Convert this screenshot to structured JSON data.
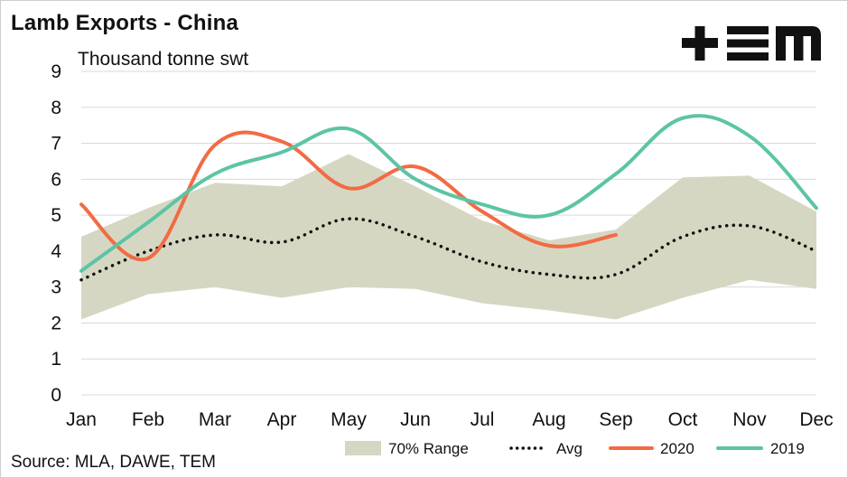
{
  "title": "Lamb Exports - China",
  "unit": "Thousand tonne swt",
  "source": "Source: MLA, DAWE, TEM",
  "logo_text": "TEM",
  "colors": {
    "range": "#d6d7c3",
    "avg": "#111111",
    "s2020": "#f26b43",
    "s2019": "#5cc4a5",
    "grid": "#d9d9d9"
  },
  "chart_data": {
    "type": "line",
    "title": "Lamb Exports - China",
    "ylabel": "Thousand tonne swt",
    "ylim": [
      0,
      9
    ],
    "yticks": [
      0,
      1,
      2,
      3,
      4,
      5,
      6,
      7,
      8,
      9
    ],
    "grid": true,
    "legend_position": "bottom",
    "categories": [
      "Jan",
      "Feb",
      "Mar",
      "Apr",
      "May",
      "Jun",
      "Jul",
      "Aug",
      "Sep",
      "Oct",
      "Nov",
      "Dec"
    ],
    "range": {
      "name": "70% Range",
      "low": [
        2.1,
        2.8,
        3.0,
        2.7,
        3.0,
        2.95,
        2.55,
        2.35,
        2.1,
        2.7,
        3.2,
        2.95
      ],
      "high": [
        4.4,
        5.2,
        5.9,
        5.8,
        6.7,
        5.8,
        4.85,
        4.3,
        4.6,
        6.05,
        6.1,
        5.1
      ]
    },
    "series": [
      {
        "name": "Avg",
        "style": "dotted",
        "values": [
          3.2,
          4.0,
          4.45,
          4.25,
          4.9,
          4.4,
          3.7,
          3.35,
          3.35,
          4.4,
          4.7,
          4.0
        ]
      },
      {
        "name": "2020",
        "style": "solid",
        "values": [
          5.3,
          3.8,
          6.95,
          7.05,
          5.75,
          6.35,
          5.1,
          4.15,
          4.45,
          null,
          null,
          null
        ]
      },
      {
        "name": "2019",
        "style": "solid",
        "values": [
          3.45,
          4.8,
          6.15,
          6.75,
          7.4,
          6.0,
          5.3,
          5.0,
          6.15,
          7.7,
          7.2,
          5.2
        ]
      }
    ]
  }
}
